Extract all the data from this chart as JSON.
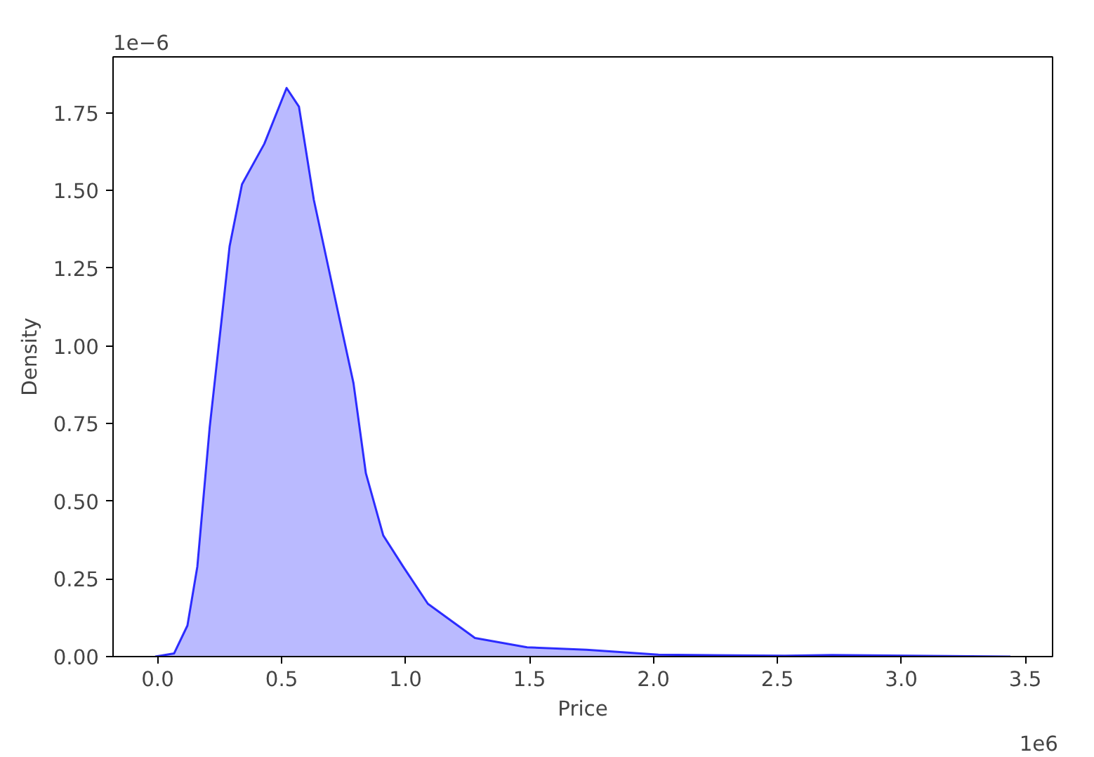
{
  "chart_data": {
    "type": "area",
    "xlabel": "Price",
    "ylabel": "Density",
    "annotations": [
      "1e−6",
      "1e6"
    ],
    "xlim": [
      -0.18,
      3.61
    ],
    "ylim": [
      0,
      1.93
    ],
    "xticks": [
      {
        "value": 0,
        "label": "0.0"
      },
      {
        "value": 0.5,
        "label": "0.5"
      },
      {
        "value": 1,
        "label": "1.0"
      },
      {
        "value": 1.5,
        "label": "1.5"
      },
      {
        "value": 2,
        "label": "2.0"
      },
      {
        "value": 2.5,
        "label": "2.5"
      },
      {
        "value": 3,
        "label": "3.0"
      },
      {
        "value": 3.5,
        "label": "3.5"
      }
    ],
    "yticks": [
      {
        "value": 0,
        "label": "0.00"
      },
      {
        "value": 0.25,
        "label": "0.25"
      },
      {
        "value": 0.5,
        "label": "0.50"
      },
      {
        "value": 0.75,
        "label": "0.75"
      },
      {
        "value": 1,
        "label": "1.00"
      },
      {
        "value": 1.25,
        "label": "1.25"
      },
      {
        "value": 1.5,
        "label": "1.50"
      },
      {
        "value": 1.75,
        "label": "1.75"
      }
    ],
    "grid": false,
    "series": [
      {
        "color": "#0000ff",
        "x": [
          -0.01,
          0.066,
          0.12,
          0.16,
          0.21,
          0.26,
          0.29,
          0.34,
          0.43,
          0.52,
          0.57,
          0.63,
          0.73,
          0.79,
          0.84,
          0.91,
          0.99,
          1.09,
          1.28,
          1.49,
          1.73,
          2.02,
          2.53,
          2.72,
          3.44
        ],
        "values": [
          0,
          0.01,
          0.1,
          0.29,
          0.74,
          1.1,
          1.32,
          1.52,
          1.65,
          1.83,
          1.77,
          1.47,
          1.1,
          0.88,
          0.59,
          0.39,
          0.29,
          0.17,
          0.06,
          0.03,
          0.022,
          0.006,
          0.003,
          0.005,
          0
        ]
      }
    ]
  }
}
